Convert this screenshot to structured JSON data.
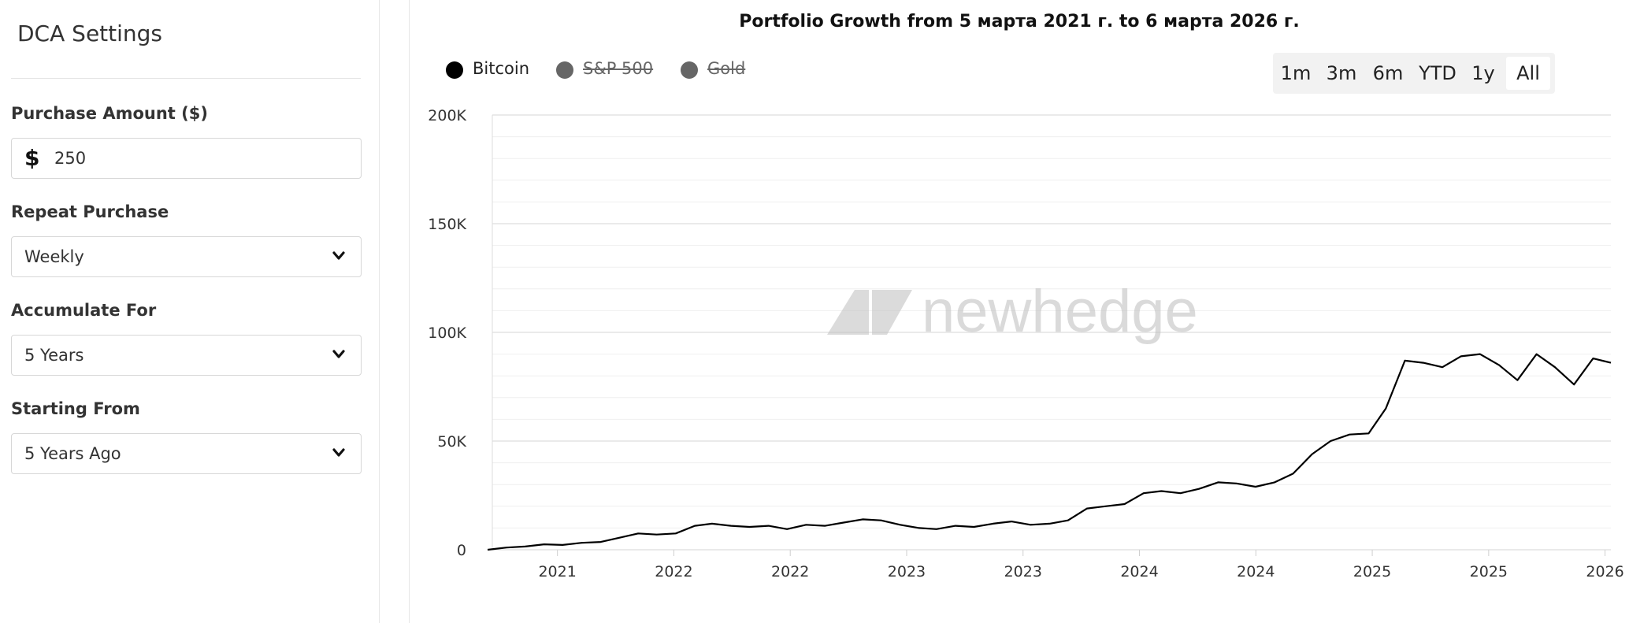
{
  "sidebar": {
    "title": "DCA Settings",
    "purchase_amount": {
      "label": "Purchase Amount ($)",
      "currency_symbol": "$",
      "value": "250"
    },
    "repeat_purchase": {
      "label": "Repeat Purchase",
      "value": "Weekly"
    },
    "accumulate_for": {
      "label": "Accumulate For",
      "value": "5 Years"
    },
    "starting_from": {
      "label": "Starting From",
      "value": "5 Years Ago"
    }
  },
  "chart": {
    "title": "Portfolio Growth from 5 марта 2021 г. to 6 марта 2026 г.",
    "legend": [
      {
        "label": "Bitcoin",
        "color": "#000000",
        "enabled": true
      },
      {
        "label": "S&P 500",
        "color": "#666666",
        "enabled": false
      },
      {
        "label": "Gold",
        "color": "#666666",
        "enabled": false
      }
    ],
    "ranges": [
      "1m",
      "3m",
      "6m",
      "YTD",
      "1y",
      "All"
    ],
    "active_range": "All",
    "watermark": "newhedge"
  },
  "chart_data": {
    "type": "line",
    "title": "Portfolio Growth from 5 марта 2021 г. to 6 марта 2026 г.",
    "xlabel": "",
    "ylabel": "",
    "y_ticks": [
      "0",
      "50K",
      "100K",
      "150K",
      "200K"
    ],
    "x_ticks": [
      "2021",
      "2022",
      "2022",
      "2023",
      "2023",
      "2024",
      "2024",
      "2025",
      "2025",
      "2026"
    ],
    "ylim": [
      0,
      200000
    ],
    "xlim": [
      "2021-03-05",
      "2026-03-06"
    ],
    "grid": true,
    "legend_position": "top-left",
    "series": [
      {
        "name": "Bitcoin",
        "color": "#000000",
        "points": [
          [
            "2021-03-05",
            0
          ],
          [
            "2021-04-05",
            1000
          ],
          [
            "2021-05-05",
            1500
          ],
          [
            "2021-06-05",
            2500
          ],
          [
            "2021-07-05",
            2200
          ],
          [
            "2021-08-05",
            3200
          ],
          [
            "2021-09-05",
            3600
          ],
          [
            "2021-10-05",
            5500
          ],
          [
            "2021-11-05",
            7500
          ],
          [
            "2021-12-05",
            7000
          ],
          [
            "2022-01-05",
            7500
          ],
          [
            "2022-02-05",
            11000
          ],
          [
            "2022-03-05",
            12000
          ],
          [
            "2022-04-05",
            11000
          ],
          [
            "2022-05-05",
            10500
          ],
          [
            "2022-06-05",
            11000
          ],
          [
            "2022-07-05",
            9500
          ],
          [
            "2022-08-05",
            11500
          ],
          [
            "2022-09-05",
            11000
          ],
          [
            "2022-10-05",
            12500
          ],
          [
            "2022-11-05",
            14000
          ],
          [
            "2022-12-05",
            13500
          ],
          [
            "2023-01-05",
            11500
          ],
          [
            "2023-02-05",
            10000
          ],
          [
            "2023-03-05",
            9500
          ],
          [
            "2023-04-05",
            11000
          ],
          [
            "2023-05-05",
            10500
          ],
          [
            "2023-06-05",
            12000
          ],
          [
            "2023-07-05",
            13000
          ],
          [
            "2023-08-05",
            11500
          ],
          [
            "2023-09-05",
            12000
          ],
          [
            "2023-10-05",
            13500
          ],
          [
            "2023-11-05",
            19000
          ],
          [
            "2023-12-05",
            20000
          ],
          [
            "2024-01-05",
            21000
          ],
          [
            "2024-02-05",
            26000
          ],
          [
            "2024-03-05",
            27000
          ],
          [
            "2024-04-05",
            26000
          ],
          [
            "2024-05-05",
            28000
          ],
          [
            "2024-06-05",
            31000
          ],
          [
            "2024-07-05",
            30500
          ],
          [
            "2024-08-05",
            29000
          ],
          [
            "2024-09-05",
            31000
          ],
          [
            "2024-10-05",
            35000
          ],
          [
            "2024-11-05",
            44000
          ],
          [
            "2024-12-05",
            50000
          ],
          [
            "2025-01-05",
            53000
          ],
          [
            "2025-02-05",
            53500
          ],
          [
            "2025-03-05",
            65000
          ],
          [
            "2025-04-05",
            87000
          ],
          [
            "2025-05-05",
            86000
          ],
          [
            "2025-06-05",
            84000
          ],
          [
            "2025-07-05",
            89000
          ],
          [
            "2025-08-05",
            90000
          ],
          [
            "2025-09-05",
            85000
          ],
          [
            "2025-10-05",
            78000
          ],
          [
            "2025-11-05",
            90000
          ],
          [
            "2025-12-05",
            84000
          ],
          [
            "2026-01-05",
            76000
          ],
          [
            "2026-02-05",
            88000
          ],
          [
            "2026-03-06",
            86000
          ]
        ]
      }
    ]
  }
}
